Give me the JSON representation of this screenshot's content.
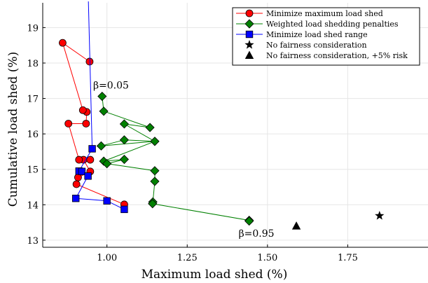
{
  "chart_data": {
    "type": "scatter",
    "title": "",
    "xlabel": "Maximum load shed (%)",
    "ylabel": "Cumulative load shed (%)",
    "xlim": [
      0.8,
      2.0
    ],
    "ylim": [
      12.8,
      19.7
    ],
    "xticks": [
      1.0,
      1.25,
      1.5,
      1.75
    ],
    "xtick_labels": [
      "1.00",
      "1.25",
      "1.50",
      "1.75"
    ],
    "yticks": [
      13,
      14,
      15,
      16,
      17,
      18,
      19
    ],
    "ytick_labels": [
      "13",
      "14",
      "15",
      "16",
      "17",
      "18",
      "19"
    ],
    "grid": true,
    "legend_position": "top-right",
    "series": [
      {
        "name": "Minimize maximum load shed",
        "color": "#ff0000",
        "marker": "circle",
        "line": true,
        "points": [
          [
            1.054,
            14.01
          ],
          [
            0.905,
            14.58
          ],
          [
            0.91,
            14.77
          ],
          [
            0.948,
            14.94
          ],
          [
            0.927,
            15.27
          ],
          [
            0.948,
            15.27
          ],
          [
            0.913,
            15.27
          ],
          [
            0.88,
            16.29
          ],
          [
            0.935,
            16.29
          ],
          [
            0.937,
            16.62
          ],
          [
            0.925,
            16.67
          ],
          [
            0.862,
            18.57
          ],
          [
            0.946,
            18.04
          ]
        ]
      },
      {
        "name": "Weighted load shedding penalties",
        "color": "#008000",
        "marker": "diamond",
        "line": true,
        "points": [
          [
            0.985,
            17.06
          ],
          [
            0.99,
            16.64
          ],
          [
            1.134,
            16.18
          ],
          [
            1.054,
            16.28
          ],
          [
            1.149,
            15.79
          ],
          [
            1.054,
            15.83
          ],
          [
            0.982,
            15.66
          ],
          [
            1.149,
            15.79
          ],
          [
            0.99,
            15.23
          ],
          [
            1.054,
            15.28
          ],
          [
            1.0,
            15.16
          ],
          [
            1.149,
            14.96
          ],
          [
            1.149,
            14.66
          ],
          [
            1.143,
            14.08
          ],
          [
            1.142,
            14.03
          ],
          [
            1.443,
            13.56
          ],
          [
            1.443,
            13.54
          ]
        ]
      },
      {
        "name": "Minimize load shed range",
        "color": "#0000ff",
        "marker": "square",
        "line": true,
        "points": [
          [
            0.942,
            19.8
          ],
          [
            0.954,
            15.58
          ],
          [
            0.913,
            14.95
          ],
          [
            0.922,
            14.94
          ],
          [
            0.941,
            14.81
          ],
          [
            0.903,
            14.18
          ],
          [
            1.0,
            14.11
          ],
          [
            1.054,
            13.87
          ]
        ]
      },
      {
        "name": "No fairness consideration",
        "color": "#000000",
        "marker": "star",
        "line": false,
        "points": [
          [
            1.849,
            13.69
          ]
        ]
      },
      {
        "name": "No fairness consideration, +5% risk",
        "color": "#000000",
        "marker": "triangle",
        "line": false,
        "points": [
          [
            1.59,
            13.4
          ]
        ]
      }
    ],
    "annotations": [
      {
        "text": "β=0.05",
        "x": 0.957,
        "y": 17.28
      },
      {
        "text": "β=0.95",
        "x": 1.41,
        "y": 13.1
      }
    ]
  }
}
